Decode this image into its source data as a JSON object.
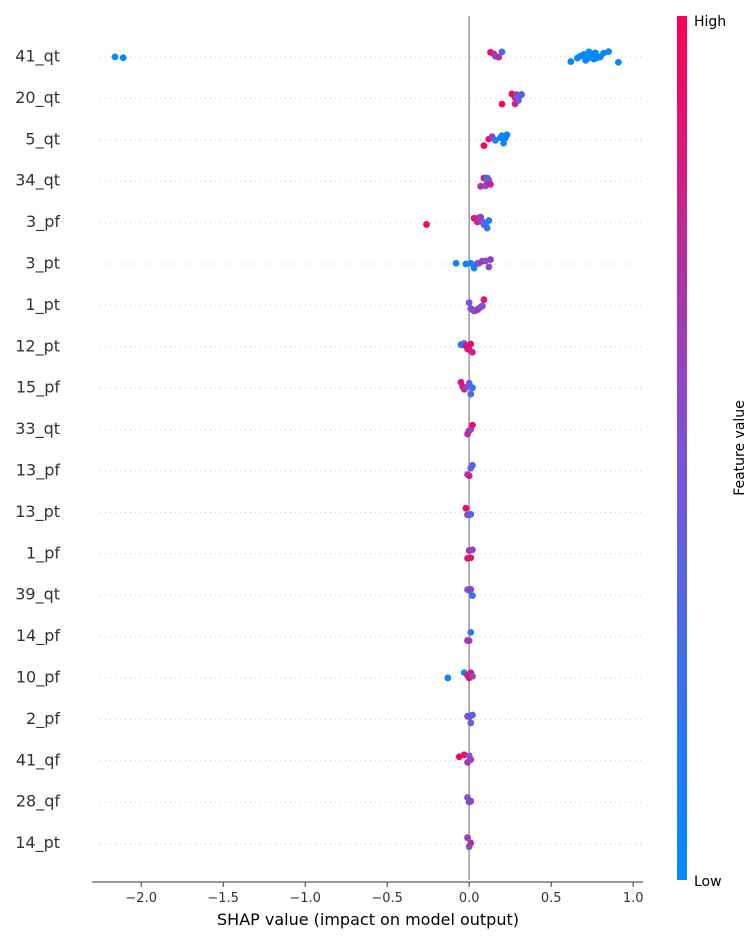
{
  "chart_data": {
    "type": "scatter",
    "title": "",
    "xlabel": "SHAP value (impact on model output)",
    "ylabel": "",
    "xlim": [
      -2.3,
      1.06
    ],
    "x_ticks": [
      -2.0,
      -1.5,
      -1.0,
      -0.5,
      0.0,
      0.5,
      1.0
    ],
    "x_tick_labels": [
      "−2.0",
      "−1.5",
      "−1.0",
      "−0.5",
      "0.0",
      "0.5",
      "1.0"
    ],
    "features": [
      "41_qt",
      "20_qt",
      "5_qt",
      "34_qt",
      "3_pf",
      "3_pt",
      "1_pt",
      "12_pt",
      "15_pf",
      "33_qt",
      "13_pf",
      "13_pt",
      "1_pf",
      "39_qt",
      "14_pf",
      "10_pf",
      "2_pf",
      "41_qf",
      "28_qf",
      "14_pt"
    ],
    "colorbar": {
      "label": "Feature value",
      "high_label": "High",
      "low_label": "Low",
      "low_color": "#008bfb",
      "mid_color": "#7d52d9",
      "high_color": "#ff0052"
    },
    "series": [
      {
        "feature": "41_qt",
        "x": [
          -2.16,
          -2.11,
          0.13,
          0.15,
          0.16,
          0.18,
          0.2,
          0.62,
          0.66,
          0.68,
          0.7,
          0.71,
          0.72,
          0.73,
          0.74,
          0.75,
          0.76,
          0.77,
          0.78,
          0.8,
          0.82,
          0.85,
          0.91
        ],
        "v": [
          0.02,
          0.02,
          0.92,
          0.8,
          0.6,
          0.7,
          0.3,
          0.02,
          0.02,
          0.02,
          0.02,
          0.03,
          0.02,
          0.02,
          0.02,
          0.02,
          0.03,
          0.02,
          0.02,
          0.02,
          0.02,
          0.02,
          0.02
        ]
      },
      {
        "feature": "20_qt",
        "x": [
          0.2,
          0.26,
          0.28,
          0.28,
          0.29,
          0.29,
          0.3,
          0.3,
          0.31,
          0.32
        ],
        "v": [
          0.95,
          0.92,
          0.8,
          0.85,
          0.7,
          0.6,
          0.5,
          0.45,
          0.4,
          0.35
        ]
      },
      {
        "feature": "5_qt",
        "x": [
          0.09,
          0.12,
          0.14,
          0.16,
          0.19,
          0.2,
          0.21,
          0.22,
          0.22,
          0.23
        ],
        "v": [
          0.95,
          0.92,
          0.6,
          0.1,
          0.05,
          0.05,
          0.05,
          0.05,
          0.06,
          0.05
        ]
      },
      {
        "feature": "34_qt",
        "x": [
          0.07,
          0.09,
          0.1,
          0.11,
          0.11,
          0.12,
          0.12,
          0.13
        ],
        "v": [
          0.7,
          0.85,
          0.6,
          0.2,
          0.1,
          0.9,
          0.5,
          0.8
        ]
      },
      {
        "feature": "3_pf",
        "x": [
          -0.26,
          0.03,
          0.04,
          0.05,
          0.06,
          0.07,
          0.08,
          0.09,
          0.1,
          0.11,
          0.12
        ],
        "v": [
          0.95,
          0.9,
          0.85,
          0.8,
          0.7,
          0.6,
          0.5,
          0.4,
          0.3,
          0.2,
          0.1
        ]
      },
      {
        "feature": "3_pt",
        "x": [
          -0.08,
          -0.02,
          0.01,
          0.03,
          0.05,
          0.06,
          0.08,
          0.1,
          0.12,
          0.13
        ],
        "v": [
          0.05,
          0.05,
          0.05,
          0.05,
          0.6,
          0.5,
          0.7,
          0.5,
          0.55,
          0.6
        ]
      },
      {
        "feature": "1_pt",
        "x": [
          0.0,
          0.01,
          0.02,
          0.03,
          0.04,
          0.05,
          0.06,
          0.07,
          0.08,
          0.09
        ],
        "v": [
          0.5,
          0.6,
          0.4,
          0.7,
          0.3,
          0.6,
          0.8,
          0.5,
          0.55,
          0.85
        ]
      },
      {
        "feature": "12_pt",
        "x": [
          -0.05,
          -0.04,
          -0.03,
          -0.02,
          -0.01,
          0.0,
          0.01,
          0.02
        ],
        "v": [
          0.1,
          0.1,
          0.2,
          0.9,
          0.9,
          0.85,
          0.9,
          0.8
        ]
      },
      {
        "feature": "15_pf",
        "x": [
          -0.05,
          -0.04,
          -0.03,
          -0.02,
          0.0,
          0.01,
          0.02
        ],
        "v": [
          0.9,
          0.85,
          0.8,
          0.6,
          0.4,
          0.3,
          0.2
        ]
      },
      {
        "feature": "33_qt",
        "x": [
          -0.01,
          0.0,
          0.01,
          0.02
        ],
        "v": [
          0.7,
          0.85,
          0.5,
          0.9
        ]
      },
      {
        "feature": "13_pf",
        "x": [
          -0.01,
          0.0,
          0.01,
          0.02
        ],
        "v": [
          0.6,
          0.8,
          0.5,
          0.3
        ]
      },
      {
        "feature": "13_pt",
        "x": [
          -0.02,
          -0.01,
          0.0,
          0.01
        ],
        "v": [
          0.95,
          0.8,
          0.5,
          0.3
        ]
      },
      {
        "feature": "1_pf",
        "x": [
          -0.01,
          0.0,
          0.01,
          0.02
        ],
        "v": [
          0.9,
          0.7,
          0.85,
          0.6
        ]
      },
      {
        "feature": "39_qt",
        "x": [
          -0.01,
          0.0,
          0.01,
          0.02
        ],
        "v": [
          0.5,
          0.3,
          0.6,
          0.2
        ]
      },
      {
        "feature": "14_pf",
        "x": [
          -0.01,
          0.0,
          0.01
        ],
        "v": [
          0.8,
          0.6,
          0.2
        ]
      },
      {
        "feature": "10_pf",
        "x": [
          -0.13,
          -0.03,
          -0.01,
          0.0,
          0.01,
          0.02
        ],
        "v": [
          0.05,
          0.05,
          0.8,
          0.9,
          0.85,
          0.6
        ]
      },
      {
        "feature": "2_pf",
        "x": [
          -0.01,
          0.0,
          0.01,
          0.02
        ],
        "v": [
          0.5,
          0.6,
          0.4,
          0.3
        ]
      },
      {
        "feature": "41_qf",
        "x": [
          -0.06,
          -0.03,
          -0.01,
          0.0,
          0.01
        ],
        "v": [
          0.95,
          0.9,
          0.7,
          0.5,
          0.6
        ]
      },
      {
        "feature": "28_qf",
        "x": [
          -0.01,
          0.0,
          0.01
        ],
        "v": [
          0.5,
          0.4,
          0.6
        ]
      },
      {
        "feature": "14_pt",
        "x": [
          -0.01,
          0.0,
          0.01
        ],
        "v": [
          0.6,
          0.5,
          0.7
        ]
      }
    ]
  }
}
